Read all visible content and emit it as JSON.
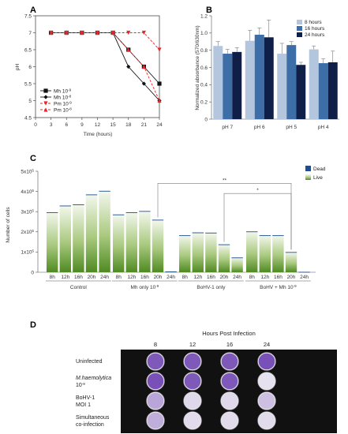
{
  "panels": {
    "a": "A",
    "b": "B",
    "c": "C",
    "d": "D"
  },
  "chart_data": [
    {
      "panel": "A",
      "type": "line",
      "xlabel": "Time (hours)",
      "ylabel": "pH",
      "xlim": [
        0,
        24
      ],
      "ylim": [
        4.5,
        7.5
      ],
      "xticks": [
        "0",
        "3",
        "6",
        "9",
        "12",
        "15",
        "18",
        "21",
        "24"
      ],
      "yticks": [
        "4.5",
        "5",
        "5.5",
        "6",
        "6.5",
        "7",
        "7.5"
      ],
      "x": [
        3,
        6,
        9,
        12,
        15,
        18,
        21,
        24
      ],
      "legend_position": "bottom-left",
      "series": [
        {
          "name": "Mh 10",
          "exp": "-9",
          "color": "#111111",
          "marker": "square",
          "style": "solid",
          "values": [
            7,
            7,
            7,
            7,
            7,
            6.5,
            6.0,
            5.5
          ]
        },
        {
          "name": "Mh 10",
          "exp": "-8",
          "color": "#111111",
          "marker": "diamond",
          "style": "solid",
          "values": [
            7,
            7,
            7,
            7,
            7,
            6.0,
            5.5,
            5.0
          ]
        },
        {
          "name": "Pm 10",
          "exp": "-9",
          "color": "#e8262a",
          "marker": "triangle-down",
          "style": "dashed",
          "values": [
            7,
            7,
            7,
            7,
            7,
            7,
            7,
            6.5
          ]
        },
        {
          "name": "Pm 10",
          "exp": "-8",
          "color": "#e8262a",
          "marker": "triangle-up",
          "style": "dashed",
          "values": [
            7,
            7,
            7,
            7,
            7,
            6.5,
            6.0,
            5.0
          ]
        }
      ]
    },
    {
      "panel": "B",
      "type": "bar",
      "ylabel": "Normalized absorbance (570/630nm)",
      "ylim": [
        0,
        1.2
      ],
      "yticks": [
        "0",
        "0.2",
        "0.4",
        "0.6",
        "0.8",
        "1.0",
        "1.2"
      ],
      "categories": [
        "pH 7",
        "pH 6",
        "pH 5",
        "pH 4"
      ],
      "legend_position": "top-right",
      "series": [
        {
          "name": "8 hours",
          "color": "#b4c6de",
          "values": [
            0.85,
            0.91,
            0.76,
            0.81
          ],
          "errors": [
            0.05,
            0.12,
            0.12,
            0.04
          ]
        },
        {
          "name": "16 hours",
          "color": "#3d6ea8",
          "values": [
            0.76,
            0.98,
            0.86,
            0.65
          ],
          "errors": [
            0.05,
            0.08,
            0.04,
            0.05
          ]
        },
        {
          "name": "24 hours",
          "color": "#0f1f48",
          "values": [
            0.78,
            0.95,
            0.63,
            0.66
          ],
          "errors": [
            0.05,
            0.2,
            0.03,
            0.13
          ]
        }
      ]
    },
    {
      "panel": "C",
      "type": "bar",
      "ylabel": "Number of cells",
      "ylim": [
        0,
        500000
      ],
      "yticks": [
        {
          "base": "0",
          "exp": ""
        },
        {
          "base": "1x10",
          "exp": "5"
        },
        {
          "base": "2x10",
          "exp": "5"
        },
        {
          "base": "3x10",
          "exp": "5"
        },
        {
          "base": "4x10",
          "exp": "5"
        },
        {
          "base": "5x10",
          "exp": "5"
        }
      ],
      "categories": [
        "8h",
        "12h",
        "16h",
        "20h",
        "24h"
      ],
      "groups": [
        {
          "label": "Control",
          "exp": "",
          "values": [
            297000,
            330000,
            336000,
            385000,
            403000
          ]
        },
        {
          "label": "Mh only 10",
          "exp": "-9",
          "values": [
            286000,
            297000,
            303000,
            260000,
            4000
          ]
        },
        {
          "label": "BoHV-1 only",
          "exp": "",
          "values": [
            183000,
            197000,
            196000,
            138000,
            73000
          ]
        },
        {
          "label": "BoHV + Mh 10",
          "exp": "-9",
          "values": [
            202000,
            183000,
            183000,
            100000,
            2000
          ]
        }
      ],
      "legend": [
        {
          "name": "Dead",
          "color": "#1f4e8c"
        },
        {
          "name": "Live",
          "color": "#8ab55a"
        }
      ],
      "legend_position": "top-right",
      "significance": [
        "**",
        "*"
      ]
    }
  ],
  "plate": {
    "panel": "D",
    "title": "Hours Post Infection",
    "columns": [
      "8",
      "12",
      "16",
      "24"
    ],
    "rows": [
      {
        "label": "Uninfected",
        "italic": false
      },
      {
        "label": "M.haemolytica",
        "sub": "10",
        "sub_exp": "-9",
        "italic": true
      },
      {
        "label": "BoHV-1",
        "sub": "MOI 1",
        "italic": false
      },
      {
        "label": "Simultaneous",
        "sub": "co-infection",
        "italic": false
      }
    ],
    "well_intensity": [
      [
        0.85,
        0.85,
        0.85,
        0.9
      ],
      [
        0.9,
        0.85,
        0.85,
        0.05
      ],
      [
        0.4,
        0.1,
        0.1,
        0.25
      ],
      [
        0.35,
        0.08,
        0.08,
        0.08
      ]
    ],
    "stain_color": "#6c3fb0"
  }
}
